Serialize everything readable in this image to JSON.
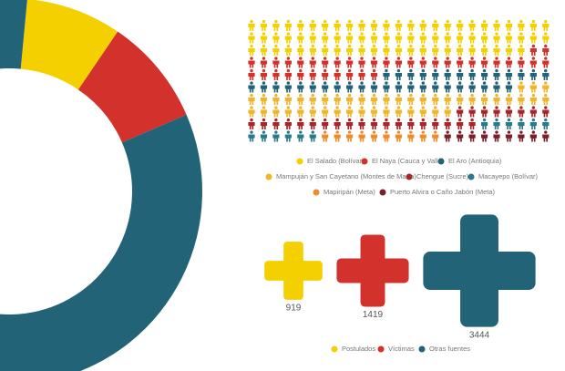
{
  "chart_data": [
    {
      "type": "donut",
      "values": [
        8,
        9,
        83
      ],
      "colors": [
        "#f5d000",
        "#d3322c",
        "#236378"
      ]
    },
    {
      "type": "pictogram",
      "series": [
        {
          "name": "El Salado (Bolívar)",
          "color": "#f5d000",
          "count": 73
        },
        {
          "name": "El Naya (Cauca y Valle)",
          "color": "#d3322c",
          "count": 38
        },
        {
          "name": "El Aro (Antioquia)",
          "color": "#236378",
          "count": 36
        },
        {
          "name": "Mampuján y San Cayetano (Montes de María)",
          "color": "#f0b528",
          "count": 45
        },
        {
          "name": "Chengue (Sucre)",
          "color": "#a6262a",
          "count": 27
        },
        {
          "name": "Macayepo (Bolívar)",
          "color": "#2b7a8c",
          "count": 12
        },
        {
          "name": "Mapiripán (Meta)",
          "color": "#ef8a2d",
          "count": 10
        },
        {
          "name": "Puerto Alvira o Caño Jabón (Meta)",
          "color": "#7a1f2b",
          "count": 9
        }
      ]
    },
    {
      "type": "cross",
      "series": [
        {
          "name": "Postulados",
          "color": "#f5d000",
          "value": 919
        },
        {
          "name": "Víctimas",
          "color": "#d3322c",
          "value": 1419
        },
        {
          "name": "Otras fuentes",
          "color": "#236378",
          "value": 3444
        }
      ]
    }
  ]
}
